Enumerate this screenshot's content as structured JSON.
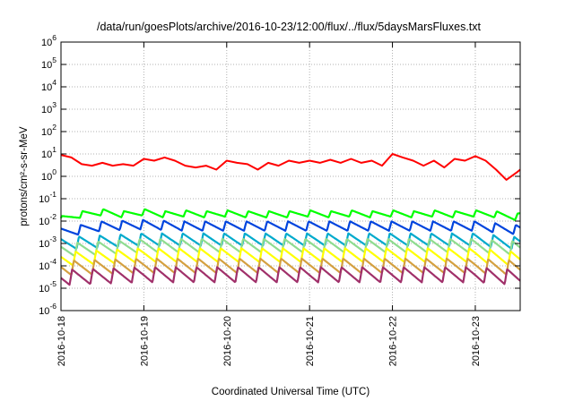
{
  "chart_data": {
    "type": "line",
    "title": "/data/run/goesPlots/archive/2016-10-23/12:00/flux/../flux/5daysMarsFluxes.txt",
    "xlabel": "Coordinated Universal Time (UTC)",
    "ylabel": "protons/cm²-s-sr-MeV",
    "y_scale": "log",
    "ylim": [
      1e-06,
      1000000.0
    ],
    "xlim": [
      "2016-10-18 00:00",
      "2016-10-23 13:00"
    ],
    "grid": true,
    "x_ticks": [
      "2016-10-18",
      "2016-10-19",
      "2016-10-20",
      "2016-10-21",
      "2016-10-22",
      "2016-10-23"
    ],
    "y_ticks": [
      {
        "mant": "10",
        "exp": "6",
        "value": 1000000.0
      },
      {
        "mant": "10",
        "exp": "5",
        "value": 100000.0
      },
      {
        "mant": "10",
        "exp": "4",
        "value": 10000.0
      },
      {
        "mant": "10",
        "exp": "3",
        "value": 1000.0
      },
      {
        "mant": "10",
        "exp": "2",
        "value": 100.0
      },
      {
        "mant": "10",
        "exp": "1",
        "value": 10.0
      },
      {
        "mant": "10",
        "exp": "0",
        "value": 1
      },
      {
        "mant": "10",
        "exp": "-1",
        "value": 0.1
      },
      {
        "mant": "10",
        "exp": "-2",
        "value": 0.01
      },
      {
        "mant": "10",
        "exp": "-3",
        "value": 0.001
      },
      {
        "mant": "10",
        "exp": "-4",
        "value": 0.0001
      },
      {
        "mant": "10",
        "exp": "-5",
        "value": 1e-05
      },
      {
        "mant": "10",
        "exp": "-6",
        "value": 1e-06
      }
    ],
    "series": [
      {
        "color": "#ff0000",
        "x": [
          "2016-10-18 00:00",
          "2016-10-18 03:00",
          "2016-10-18 06:00",
          "2016-10-18 09:00",
          "2016-10-18 12:00",
          "2016-10-18 15:00",
          "2016-10-18 18:00",
          "2016-10-18 21:00",
          "2016-10-19 00:00",
          "2016-10-19 03:00",
          "2016-10-19 06:00",
          "2016-10-19 09:00",
          "2016-10-19 12:00",
          "2016-10-19 15:00",
          "2016-10-19 18:00",
          "2016-10-19 21:00",
          "2016-10-20 00:00",
          "2016-10-20 03:00",
          "2016-10-20 06:00",
          "2016-10-20 09:00",
          "2016-10-20 12:00",
          "2016-10-20 15:00",
          "2016-10-20 18:00",
          "2016-10-20 21:00",
          "2016-10-21 00:00",
          "2016-10-21 03:00",
          "2016-10-21 06:00",
          "2016-10-21 09:00",
          "2016-10-21 12:00",
          "2016-10-21 15:00",
          "2016-10-21 18:00",
          "2016-10-21 21:00",
          "2016-10-22 00:00",
          "2016-10-22 03:00",
          "2016-10-22 06:00",
          "2016-10-22 09:00",
          "2016-10-22 12:00",
          "2016-10-22 15:00",
          "2016-10-22 18:00",
          "2016-10-22 21:00",
          "2016-10-23 00:00",
          "2016-10-23 03:00",
          "2016-10-23 06:00",
          "2016-10-23 09:00",
          "2016-10-23 12:00",
          "2016-10-23 13:00"
        ],
        "values": [
          9.0,
          7.0,
          3.5,
          3.0,
          4.0,
          3.0,
          3.5,
          3.0,
          6.0,
          5.0,
          7.0,
          5.0,
          3.0,
          2.5,
          3.0,
          2.0,
          5.0,
          4.0,
          3.5,
          2.0,
          4.0,
          3.0,
          5.0,
          4.0,
          5.0,
          4.0,
          5.5,
          4.0,
          6.0,
          4.0,
          5.0,
          3.0,
          10.0,
          7.0,
          5.0,
          3.0,
          5.0,
          2.5,
          6.0,
          5.0,
          8.0,
          5.0,
          2.0,
          0.7,
          1.5,
          2.0
        ]
      },
      {
        "color": "#00ff00",
        "x": [
          "2016-10-18 00:00",
          "2016-10-18 06:00",
          "2016-10-18 12:00",
          "2016-10-18 18:00",
          "2016-10-19 00:00",
          "2016-10-19 06:00",
          "2016-10-19 12:00",
          "2016-10-19 18:00",
          "2016-10-20 00:00",
          "2016-10-20 06:00",
          "2016-10-20 12:00",
          "2016-10-20 18:00",
          "2016-10-21 00:00",
          "2016-10-21 06:00",
          "2016-10-21 12:00",
          "2016-10-21 18:00",
          "2016-10-22 00:00",
          "2016-10-22 06:00",
          "2016-10-22 12:00",
          "2016-10-22 18:00",
          "2016-10-23 00:00",
          "2016-10-23 06:00",
          "2016-10-23 12:00",
          "2016-10-23 13:00"
        ],
        "values": [
          0.012,
          0.02,
          0.025,
          0.02,
          0.025,
          0.02,
          0.022,
          0.02,
          0.022,
          0.02,
          0.02,
          0.02,
          0.022,
          0.02,
          0.022,
          0.02,
          0.022,
          0.02,
          0.022,
          0.02,
          0.022,
          0.02,
          0.015,
          0.018
        ]
      },
      {
        "color": "#0044dd",
        "x": [
          "2016-10-18 00:00",
          "2016-10-18 12:00",
          "2016-10-19 00:00",
          "2016-10-19 12:00",
          "2016-10-20 00:00",
          "2016-10-20 12:00",
          "2016-10-21 00:00",
          "2016-10-21 12:00",
          "2016-10-22 00:00",
          "2016-10-22 12:00",
          "2016-10-23 00:00",
          "2016-10-23 13:00"
        ],
        "values": [
          0.003,
          0.006,
          0.007,
          0.006,
          0.006,
          0.006,
          0.006,
          0.006,
          0.006,
          0.006,
          0.006,
          0.004
        ]
      },
      {
        "color": "#00aacc",
        "x": [
          "2016-10-18 00:00",
          "2016-10-19 00:00",
          "2016-10-20 00:00",
          "2016-10-21 00:00",
          "2016-10-22 00:00",
          "2016-10-23 00:00",
          "2016-10-23 13:00"
        ],
        "values": [
          0.001,
          0.0015,
          0.0015,
          0.0015,
          0.0015,
          0.0015,
          0.001
        ]
      },
      {
        "color": "#8fdc8f",
        "x": [
          "2016-10-18 00:00",
          "2016-10-19 00:00",
          "2016-10-20 00:00",
          "2016-10-21 00:00",
          "2016-10-22 00:00",
          "2016-10-23 00:00",
          "2016-10-23 13:00"
        ],
        "values": [
          0.0005,
          0.0008,
          0.0008,
          0.0008,
          0.0008,
          0.0008,
          0.0006
        ]
      },
      {
        "color": "#ffff00",
        "x": [
          "2016-10-18 00:00",
          "2016-10-19 00:00",
          "2016-10-20 00:00",
          "2016-10-21 00:00",
          "2016-10-22 00:00",
          "2016-10-23 00:00",
          "2016-10-23 13:00"
        ],
        "values": [
          0.0002,
          0.0003,
          0.0003,
          0.0003,
          0.0003,
          0.0003,
          0.0002
        ]
      },
      {
        "color": "#d4a040",
        "x": [
          "2016-10-18 00:00",
          "2016-10-19 00:00",
          "2016-10-20 00:00",
          "2016-10-21 00:00",
          "2016-10-22 00:00",
          "2016-10-23 00:00",
          "2016-10-23 13:00"
        ],
        "values": [
          8e-05,
          0.0001,
          0.0001,
          0.0001,
          0.0001,
          0.0001,
          8e-05
        ]
      },
      {
        "color": "#a0306a",
        "x": [
          "2016-10-18 00:00",
          "2016-10-19 00:00",
          "2016-10-20 00:00",
          "2016-10-21 00:00",
          "2016-10-22 00:00",
          "2016-10-23 00:00",
          "2016-10-23 13:00"
        ],
        "values": [
          3e-05,
          4e-05,
          4e-05,
          4e-05,
          4e-05,
          4e-05,
          3e-05
        ]
      }
    ]
  }
}
